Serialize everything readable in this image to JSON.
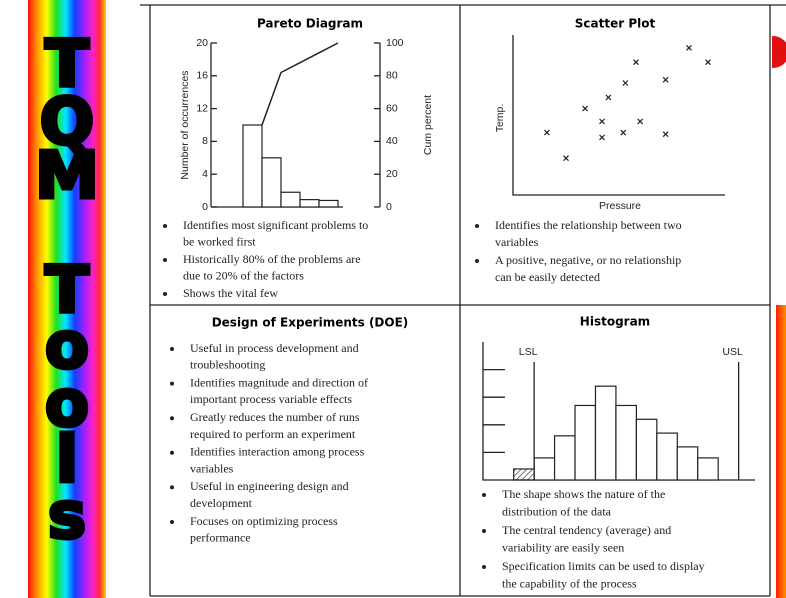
{
  "sidebar_letters": [
    "T",
    "Q",
    "M",
    "T",
    "o",
    "o",
    "l",
    "s"
  ],
  "chart_data": [
    {
      "type": "pareto",
      "title": "Pareto Diagram",
      "ylabel": "Number of occurrences",
      "y2label": "Cum percent",
      "categories": [
        null,
        null,
        null,
        null,
        null
      ],
      "values": [
        10,
        6,
        1.8,
        0.9,
        0.8
      ],
      "line_values": [
        50,
        82,
        88,
        94,
        100
      ],
      "ylim": [
        0,
        20
      ],
      "yticks": [
        0,
        4,
        8,
        12,
        16,
        20
      ],
      "y2lim": [
        0,
        100
      ],
      "y2ticks": [
        0,
        20,
        40,
        60,
        80,
        100
      ],
      "bullets": [
        [
          "Identifies most significant problems to",
          "be worked first"
        ],
        [
          "Historically 80% of the problems are",
          "due to 20% of the factors"
        ],
        [
          "Shows the vital few"
        ]
      ]
    },
    {
      "type": "scatter",
      "title": "Scatter Plot",
      "xlabel": "Pressure",
      "ylabel": "Temp.",
      "x": [
        1.6,
        2.5,
        3.4,
        4.2,
        4.2,
        4.5,
        5.2,
        5.3,
        5.8,
        6.0,
        7.2,
        7.2,
        8.3,
        9.2
      ],
      "values": [
        3.9,
        2.3,
        5.4,
        3.6,
        4.6,
        6.1,
        3.9,
        7.0,
        8.3,
        4.6,
        7.2,
        3.8,
        9.2,
        8.3
      ],
      "xlim": [
        0,
        10
      ],
      "ylim": [
        0,
        10
      ],
      "bullets": [
        [
          "Identifies the relationship between two",
          "variables"
        ],
        [
          "A positive, negative, or no relationship",
          "can be easily detected"
        ]
      ]
    },
    {
      "type": "histogram",
      "title": "Histogram",
      "bins": [
        0,
        1,
        2,
        3,
        4,
        5,
        6,
        7,
        8,
        9,
        10
      ],
      "values": [
        0.4,
        0.8,
        1.6,
        2.7,
        3.4,
        2.7,
        2.2,
        1.7,
        1.2,
        0.8
      ],
      "xlim": [
        -1.5,
        11.8
      ],
      "ylim": [
        0,
        5
      ],
      "spec_limits": [
        {
          "label": "LSL",
          "value": 1
        },
        {
          "label": "USL",
          "value": 11
        }
      ],
      "bullets": [
        [
          "The shape shows the nature of the",
          "distribution of the data"
        ],
        [
          "The central tendency (average) and",
          "variability are easily seen"
        ],
        [
          "Specification limits can be used to display",
          "the capability of the process"
        ]
      ]
    }
  ],
  "doe": {
    "title": "Design of Experiments (DOE)",
    "bullets": [
      [
        "Useful in process development and",
        "troubleshooting"
      ],
      [
        "Identifies magnitude and direction of",
        "important process variable effects"
      ],
      [
        "Greatly reduces the number of runs",
        "required to perform an experiment"
      ],
      [
        "Identifies interaction among process",
        "variables"
      ],
      [
        "Useful in engineering design and",
        "development"
      ],
      [
        "Focuses on optimizing process",
        "performance"
      ]
    ]
  }
}
